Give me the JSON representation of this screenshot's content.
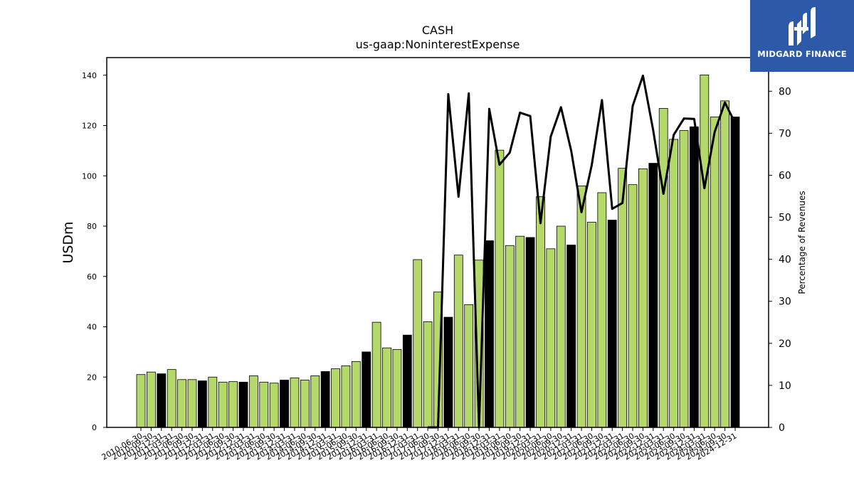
{
  "chart_data": {
    "type": "bar",
    "title": "CASH",
    "subtitle": "us-gaap:NoninterestExpense",
    "ylabel": "USDm",
    "y2label": "Percentage of Revenues",
    "ylim": [
      0,
      147
    ],
    "y2lim": [
      0,
      88
    ],
    "yticks": [
      0,
      20,
      40,
      60,
      80,
      100,
      120,
      140
    ],
    "y2ticks": [
      0,
      10,
      20,
      30,
      40,
      50,
      60,
      70,
      80
    ],
    "grid": false,
    "colors": {
      "bar_default": "#b5d86b",
      "bar_annual": "#000000",
      "line": "#000000"
    },
    "categories": [
      "2010-06-30",
      "2010-09-30",
      "2010-12-31",
      "2011-03-31",
      "2011-06-30",
      "2011-09-30",
      "2011-12-31",
      "2012-03-31",
      "2012-06-30",
      "2012-09-30",
      "2012-12-31",
      "2013-03-31",
      "2013-06-30",
      "2013-09-30",
      "2013-12-31",
      "2014-03-31",
      "2014-06-30",
      "2014-09-30",
      "2014-12-31",
      "2015-03-31",
      "2015-06-30",
      "2015-09-30",
      "2015-12-31",
      "2016-03-31",
      "2016-06-30",
      "2016-09-30",
      "2016-12-31",
      "2017-03-31",
      "2017-06-30",
      "2017-09-30",
      "2017-12-31",
      "2018-03-31",
      "2018-06-30",
      "2018-09-30",
      "2018-12-31",
      "2019-03-31",
      "2019-06-30",
      "2019-09-30",
      "2019-12-31",
      "2020-03-31",
      "2020-06-30",
      "2020-09-30",
      "2020-12-31",
      "2021-03-31",
      "2021-06-30",
      "2021-09-30",
      "2021-12-31",
      "2022-03-31",
      "2022-06-30",
      "2022-09-30",
      "2022-12-31",
      "2023-03-31",
      "2023-06-30",
      "2023-09-30",
      "2023-12-31",
      "2024-03-31",
      "2024-06-30",
      "2024-09-30",
      "2024-12-31"
    ],
    "series": [
      {
        "type": "bar",
        "values": [
          21.0,
          22.0,
          21.3,
          23.0,
          19.0,
          19.0,
          18.5,
          20.0,
          18.0,
          18.2,
          18.0,
          20.5,
          18.0,
          17.6,
          18.8,
          19.7,
          18.8,
          20.5,
          22.2,
          23.3,
          24.5,
          26.2,
          30.0,
          41.8,
          31.6,
          31.0,
          36.7,
          66.7,
          42.0,
          53.8,
          43.8,
          68.5,
          48.8,
          66.5,
          74.2,
          110.2,
          72.3,
          76.0,
          75.5,
          91.7,
          71.0,
          80.0,
          72.5,
          96.0,
          81.6,
          93.3,
          82.4,
          103.0,
          96.5,
          102.8,
          105.0,
          126.8,
          114.5,
          118.0,
          119.5,
          140.1,
          123.4,
          129.8,
          123.4
        ],
        "annual_flags": [
          false,
          false,
          true,
          false,
          false,
          false,
          true,
          false,
          false,
          false,
          true,
          false,
          false,
          false,
          true,
          false,
          false,
          false,
          true,
          false,
          false,
          false,
          true,
          false,
          false,
          false,
          true,
          false,
          false,
          false,
          true,
          false,
          false,
          false,
          true,
          false,
          false,
          false,
          true,
          false,
          false,
          false,
          true,
          false,
          false,
          false,
          true,
          false,
          false,
          false,
          true,
          false,
          false,
          false,
          true,
          false,
          false,
          false,
          true
        ]
      },
      {
        "type": "line",
        "axis": "right",
        "values": [
          null,
          null,
          null,
          null,
          null,
          null,
          null,
          null,
          null,
          null,
          null,
          null,
          null,
          null,
          null,
          null,
          null,
          null,
          null,
          null,
          null,
          null,
          null,
          null,
          null,
          null,
          null,
          null,
          0,
          0,
          79.3,
          54.9,
          79.5,
          0,
          75.8,
          62.5,
          65.4,
          74.9,
          74.1,
          48.6,
          69.2,
          76.2,
          65.8,
          51.2,
          62.4,
          77.9,
          52.0,
          53.4,
          76.5,
          83.7,
          70.7,
          55.6,
          69.6,
          73.5,
          73.4,
          56.9,
          70.3,
          77.3,
          72.4
        ]
      }
    ]
  },
  "logo": {
    "text": "MIDGARD FINANCE",
    "icon": "mh-monogram-icon"
  }
}
